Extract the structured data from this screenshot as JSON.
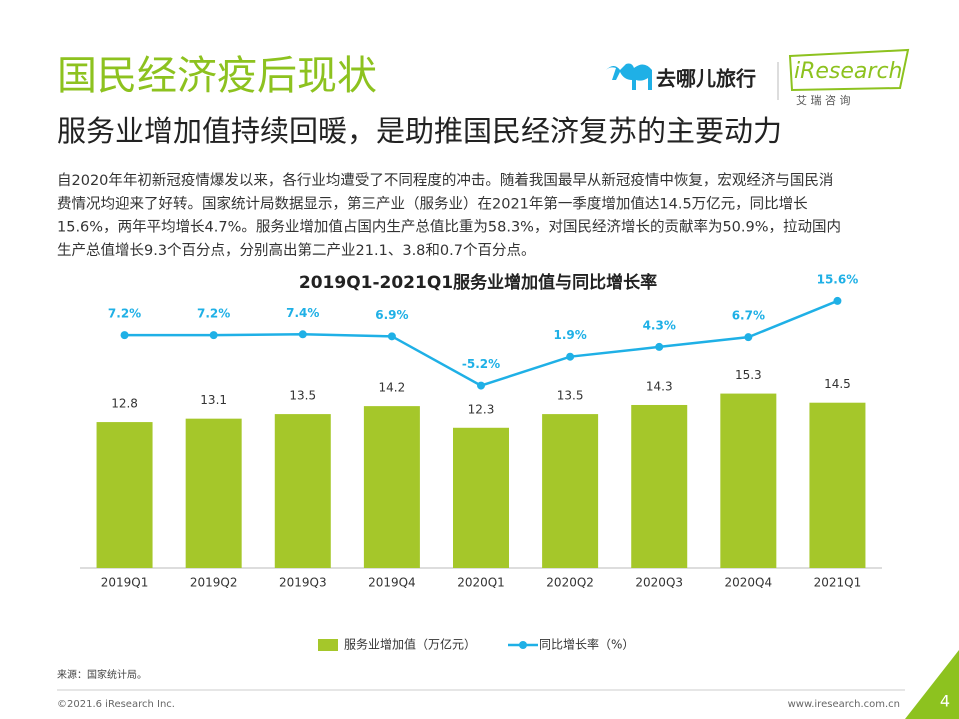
{
  "header": {
    "title": "国民经济疫后现状",
    "subtitle": "服务业增加值持续回暖，是助推国民经济复苏的主要动力",
    "partner": "去哪儿旅行",
    "brand": "iResearch",
    "brand_cn": "艾 瑞 咨 询"
  },
  "body": {
    "lines": [
      "自2020年年初新冠疫情爆发以来，各行业均遭受了不同程度的冲击。随着我国最早从新冠疫情中恢复，宏观经济与国民消",
      "费情况均迎来了好转。国家统计局数据显示，第三产业（服务业）在2021年第一季度增加值达14.5万亿元，同比增长",
      "15.6%，两年平均增长4.7%。服务业增加值占国内生产总值比重为58.3%，对国民经济增长的贡献率为50.9%，拉动国内",
      "生产总值增长9.3个百分点，分别高出第二产业21.1、3.8和0.7个百分点。"
    ]
  },
  "chart_data": {
    "type": "bar-line",
    "title": "2019Q1-2021Q1服务业增加值与同比增长率",
    "categories": [
      "2019Q1",
      "2019Q2",
      "2019Q3",
      "2019Q4",
      "2020Q1",
      "2020Q2",
      "2020Q3",
      "2020Q4",
      "2021Q1"
    ],
    "series": [
      {
        "name": "服务业增加值（万亿元）",
        "type": "bar",
        "color": "#a5c72a",
        "values": [
          12.8,
          13.1,
          13.5,
          14.2,
          12.3,
          13.5,
          14.3,
          15.3,
          14.5
        ]
      },
      {
        "name": "同比增长率（%）",
        "type": "line",
        "axis": "y2",
        "color": "#1fb0e6",
        "values": [
          7.2,
          7.2,
          7.4,
          6.9,
          -5.2,
          1.9,
          4.3,
          6.7,
          15.6
        ],
        "value_labels": [
          "7.2%",
          "7.2%",
          "7.4%",
          "6.9%",
          "-5.2%",
          "1.9%",
          "4.3%",
          "6.7%",
          "15.6%"
        ]
      }
    ],
    "ylim": [
      0,
      25
    ],
    "y2lim": [
      -50,
      20
    ],
    "legend": "bottom"
  },
  "footer": {
    "source": "来源：国家统计局。",
    "copyright": "©2021.6 iResearch Inc.",
    "url": "www.iresearch.com.cn",
    "page": "4"
  }
}
